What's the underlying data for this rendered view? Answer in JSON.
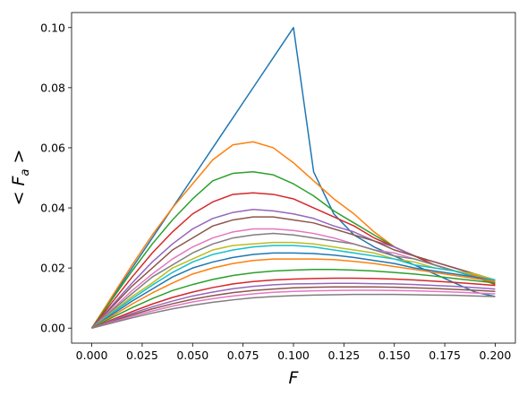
{
  "chart_data": {
    "type": "line",
    "xlabel": "F",
    "ylabel_parts": [
      "< ",
      "F",
      "a",
      " >"
    ],
    "x": [
      0,
      0.01,
      0.02,
      0.03,
      0.04,
      0.05,
      0.06,
      0.07,
      0.08,
      0.09,
      0.1,
      0.11,
      0.12,
      0.13,
      0.14,
      0.15,
      0.16,
      0.17,
      0.18,
      0.19,
      0.2
    ],
    "xlim": [
      -0.01,
      0.21
    ],
    "ylim": [
      -0.005,
      0.105
    ],
    "xticks": [
      {
        "value": 0,
        "label": "0.000"
      },
      {
        "value": 0.025,
        "label": "0.025"
      },
      {
        "value": 0.05,
        "label": "0.050"
      },
      {
        "value": 0.075,
        "label": "0.075"
      },
      {
        "value": 0.1,
        "label": "0.100"
      },
      {
        "value": 0.125,
        "label": "0.125"
      },
      {
        "value": 0.15,
        "label": "0.150"
      },
      {
        "value": 0.175,
        "label": "0.175"
      },
      {
        "value": 0.2,
        "label": "0.200"
      }
    ],
    "yticks": [
      {
        "value": 0,
        "label": "0.00"
      },
      {
        "value": 0.02,
        "label": "0.02"
      },
      {
        "value": 0.04,
        "label": "0.04"
      },
      {
        "value": 0.06,
        "label": "0.06"
      },
      {
        "value": 0.08,
        "label": "0.08"
      },
      {
        "value": 0.1,
        "label": "0.10"
      }
    ],
    "grid": false,
    "series": [
      {
        "color": "#1f77b4",
        "values": [
          0,
          0.01,
          0.02,
          0.03,
          0.04,
          0.05,
          0.06,
          0.07,
          0.08,
          0.09,
          0.1,
          0.052,
          0.038,
          0.031,
          0.027,
          0.024,
          0.021,
          0.018,
          0.015,
          0.012,
          0.0105
        ]
      },
      {
        "color": "#ff7f0e",
        "values": [
          0,
          0.0105,
          0.021,
          0.031,
          0.04,
          0.048,
          0.056,
          0.061,
          0.062,
          0.06,
          0.055,
          0.049,
          0.043,
          0.038,
          0.032,
          0.027,
          0.024,
          0.021,
          0.019,
          0.0175,
          0.016
        ]
      },
      {
        "color": "#2ca02c",
        "values": [
          0,
          0.0095,
          0.019,
          0.028,
          0.036,
          0.043,
          0.049,
          0.0515,
          0.052,
          0.051,
          0.048,
          0.044,
          0.039,
          0.035,
          0.031,
          0.027,
          0.024,
          0.021,
          0.019,
          0.017,
          0.015
        ]
      },
      {
        "color": "#d62728",
        "values": [
          0,
          0.0085,
          0.017,
          0.025,
          0.032,
          0.038,
          0.042,
          0.0445,
          0.045,
          0.0445,
          0.043,
          0.04,
          0.037,
          0.034,
          0.03,
          0.027,
          0.024,
          0.021,
          0.019,
          0.017,
          0.0145
        ]
      },
      {
        "color": "#9467bd",
        "values": [
          0,
          0.0075,
          0.015,
          0.022,
          0.028,
          0.033,
          0.0365,
          0.0385,
          0.0395,
          0.039,
          0.038,
          0.0365,
          0.034,
          0.032,
          0.029,
          0.027,
          0.024,
          0.022,
          0.02,
          0.018,
          0.016
        ]
      },
      {
        "color": "#8c564b",
        "values": [
          0,
          0.007,
          0.014,
          0.02,
          0.026,
          0.03,
          0.034,
          0.036,
          0.037,
          0.037,
          0.036,
          0.035,
          0.033,
          0.031,
          0.029,
          0.026,
          0.024,
          0.022,
          0.02,
          0.018,
          0.016
        ]
      },
      {
        "color": "#e377c2",
        "values": [
          0,
          0.0062,
          0.0125,
          0.018,
          0.023,
          0.027,
          0.03,
          0.032,
          0.033,
          0.033,
          0.0325,
          0.0315,
          0.03,
          0.028,
          0.026,
          0.025,
          0.023,
          0.021,
          0.019,
          0.018,
          0.016
        ]
      },
      {
        "color": "#7f7f7f",
        "values": [
          0,
          0.0058,
          0.0115,
          0.017,
          0.021,
          0.025,
          0.028,
          0.03,
          0.031,
          0.0315,
          0.031,
          0.03,
          0.029,
          0.028,
          0.026,
          0.024,
          0.023,
          0.021,
          0.019,
          0.018,
          0.016
        ]
      },
      {
        "color": "#bcbd22",
        "values": [
          0,
          0.0053,
          0.0105,
          0.015,
          0.02,
          0.023,
          0.026,
          0.0275,
          0.028,
          0.0285,
          0.0285,
          0.028,
          0.027,
          0.026,
          0.025,
          0.023,
          0.022,
          0.02,
          0.019,
          0.018,
          0.016
        ]
      },
      {
        "color": "#17becf",
        "values": [
          0,
          0.005,
          0.0098,
          0.0143,
          0.0185,
          0.022,
          0.0245,
          0.026,
          0.027,
          0.0275,
          0.0275,
          0.027,
          0.026,
          0.025,
          0.024,
          0.023,
          0.021,
          0.02,
          0.019,
          0.017,
          0.016
        ]
      },
      {
        "color": "#1f77b4",
        "values": [
          0,
          0.0045,
          0.009,
          0.013,
          0.017,
          0.02,
          0.022,
          0.0235,
          0.0245,
          0.025,
          0.025,
          0.0248,
          0.0243,
          0.0235,
          0.0225,
          0.0215,
          0.02,
          0.019,
          0.018,
          0.017,
          0.0155
        ]
      },
      {
        "color": "#ff7f0e",
        "values": [
          0,
          0.004,
          0.008,
          0.0117,
          0.015,
          0.018,
          0.02,
          0.0215,
          0.0225,
          0.023,
          0.023,
          0.023,
          0.0228,
          0.0222,
          0.0215,
          0.0205,
          0.0195,
          0.0185,
          0.0175,
          0.0165,
          0.0155
        ]
      },
      {
        "color": "#2ca02c",
        "values": [
          0,
          0.0035,
          0.0068,
          0.0098,
          0.0125,
          0.0145,
          0.0162,
          0.0175,
          0.0184,
          0.019,
          0.0193,
          0.0195,
          0.0195,
          0.0193,
          0.019,
          0.0185,
          0.018,
          0.0173,
          0.0165,
          0.0158,
          0.015
        ]
      },
      {
        "color": "#d62728",
        "values": [
          0,
          0.0028,
          0.0055,
          0.008,
          0.0102,
          0.012,
          0.0135,
          0.0147,
          0.0155,
          0.016,
          0.0163,
          0.0165,
          0.0166,
          0.0166,
          0.0165,
          0.0163,
          0.016,
          0.0156,
          0.0152,
          0.0147,
          0.0142
        ]
      },
      {
        "color": "#9467bd",
        "values": [
          0,
          0.0025,
          0.0049,
          0.0071,
          0.009,
          0.0107,
          0.012,
          0.0131,
          0.0139,
          0.0144,
          0.0147,
          0.0148,
          0.0149,
          0.0149,
          0.0148,
          0.0147,
          0.0145,
          0.0142,
          0.0139,
          0.0135,
          0.013
        ]
      },
      {
        "color": "#8c564b",
        "values": [
          0,
          0.0022,
          0.0044,
          0.0064,
          0.0081,
          0.0096,
          0.0108,
          0.0118,
          0.0125,
          0.013,
          0.0134,
          0.0136,
          0.0137,
          0.0137,
          0.0137,
          0.0136,
          0.0134,
          0.0132,
          0.0129,
          0.0126,
          0.0122
        ]
      },
      {
        "color": "#e377c2",
        "values": [
          0,
          0.002,
          0.0039,
          0.0057,
          0.0073,
          0.0087,
          0.0098,
          0.0107,
          0.0114,
          0.0119,
          0.0122,
          0.0124,
          0.0125,
          0.0126,
          0.0126,
          0.0125,
          0.0124,
          0.0122,
          0.012,
          0.0117,
          0.0114
        ]
      },
      {
        "color": "#7f7f7f",
        "values": [
          0,
          0.0017,
          0.0034,
          0.005,
          0.0064,
          0.0076,
          0.0086,
          0.0094,
          0.0101,
          0.0105,
          0.0108,
          0.011,
          0.0111,
          0.0112,
          0.0112,
          0.0112,
          0.0111,
          0.011,
          0.0109,
          0.0107,
          0.0105
        ]
      }
    ]
  }
}
